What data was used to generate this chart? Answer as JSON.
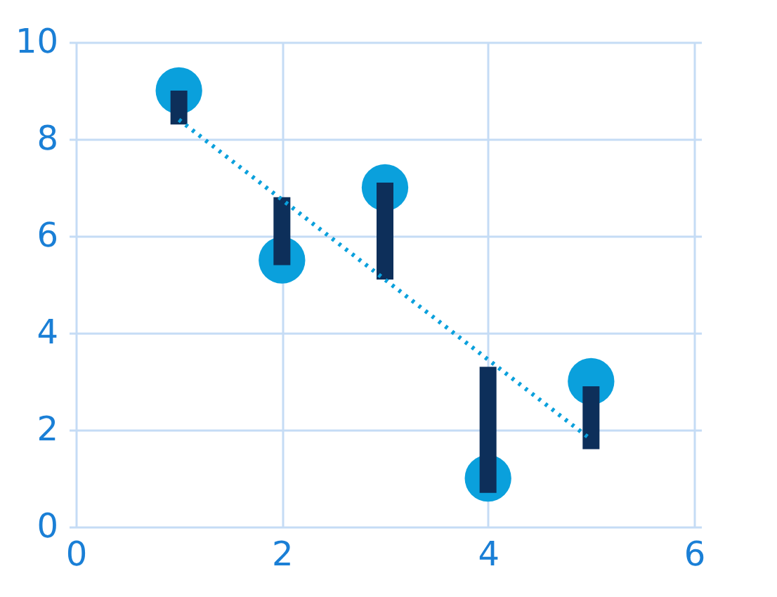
{
  "chart_data": {
    "type": "scatter",
    "x": [
      1,
      2,
      3,
      4,
      5
    ],
    "series": [
      {
        "color": "#0aa0dc",
        "values": [
          9,
          5.5,
          7,
          1,
          3
        ],
        "marker": "circle"
      },
      {
        "type": "bar",
        "color": "#0d2f5a",
        "base": [
          8.3,
          5.4,
          5.1,
          0.7,
          1.6
        ],
        "values": [
          0.7,
          1.4,
          2.0,
          2.6,
          1.3
        ]
      },
      {
        "type": "line",
        "color": "#0aa0dc",
        "x": [
          1,
          5
        ],
        "values": [
          8.4,
          1.8
        ],
        "line_style": "dotted"
      }
    ],
    "xlim": [
      0,
      6
    ],
    "xticks": [
      0,
      2,
      4,
      6
    ],
    "ylim": [
      0,
      10
    ],
    "yticks": [
      0,
      2,
      4,
      6,
      8,
      10
    ],
    "grid": true
  }
}
